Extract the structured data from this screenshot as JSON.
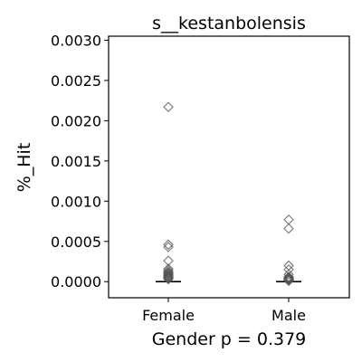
{
  "chart_data": {
    "type": "scatter",
    "title": "s__kestanbolensis",
    "xlabel": "Gender p = 0.379",
    "ylabel": "%_Hit",
    "ylim": [
      -0.0002,
      0.00305
    ],
    "yticks": [
      "0.0000",
      "0.0005",
      "0.0010",
      "0.0015",
      "0.0020",
      "0.0025",
      "0.0030"
    ],
    "categories": [
      "Female",
      "Male"
    ],
    "marker": "diamond",
    "marker_color": "#555555",
    "median_line_color": "#000000",
    "series": [
      {
        "category": "Female",
        "median": 0.0,
        "values": [
          0.00217,
          0.00046,
          0.00043,
          0.00026,
          0.00016,
          0.00014,
          0.00012,
          0.00011,
          0.0001,
          9e-05,
          8e-05,
          7e-05,
          6e-05,
          5e-05,
          5e-05,
          4e-05,
          3e-05
        ]
      },
      {
        "category": "Male",
        "median": 0.0,
        "values": [
          0.00077,
          0.00066,
          0.0002,
          0.00015,
          9e-05,
          6e-05,
          5e-05,
          4e-05,
          4e-05,
          3e-05,
          3e-05,
          2e-05,
          2e-05,
          1e-05
        ]
      }
    ]
  }
}
